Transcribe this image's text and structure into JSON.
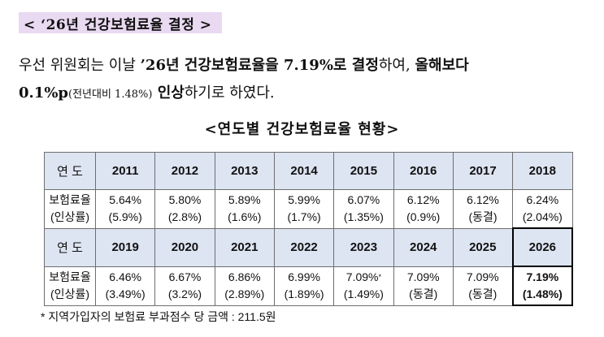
{
  "heading": "< ‘26년 건강보험료율 결정 >",
  "paragraph": {
    "p1": "우선 위원회는 이날 ",
    "p2": "’26년 건강보험료율을 7.19%로 결정",
    "p3": "하여, ",
    "p4": "올해보다",
    "p5": "0.1%p",
    "p6": "(전년대비 1.48%)",
    "p7": " 인상",
    "p8": "하기로 하였다."
  },
  "table_title": "<연도별 건강보험료율 현황>",
  "table": {
    "year_header": "연 도",
    "rate_header_line1": "보험료율",
    "rate_header_line2": "(인상률)",
    "rows": [
      {
        "years": [
          "2011",
          "2012",
          "2013",
          "2014",
          "2015",
          "2016",
          "2017",
          "2018"
        ],
        "rates": [
          "5.64%",
          "5.80%",
          "5.89%",
          "5.99%",
          "6.07%",
          "6.12%",
          "6.12%",
          "6.24%"
        ],
        "changes": [
          "(5.9%)",
          "(2.8%)",
          "(1.6%)",
          "(1.7%)",
          "(1.35%)",
          "(0.9%)",
          "(동결)",
          "(2.04%)"
        ]
      },
      {
        "years": [
          "2019",
          "2020",
          "2021",
          "2022",
          "2023",
          "2024",
          "2025",
          "2026"
        ],
        "rates": [
          "6.46%",
          "6.67%",
          "6.86%",
          "6.99%",
          "7.09%",
          "7.09%",
          "7.09%",
          "7.19%"
        ],
        "changes": [
          "(3.49%)",
          "(3.2%)",
          "(2.89%)",
          "(1.89%)",
          "(1.49%)",
          "(동결)",
          "(동결)",
          "(1.48%)"
        ]
      }
    ],
    "asterisk_mark": "*"
  },
  "footnote": "* 지역가입자의 보험료 부과점수 당 금액 : 211.5원",
  "colors": {
    "heading_bg": "#e9d9f1",
    "year_row_bg": "#dde4f2"
  }
}
